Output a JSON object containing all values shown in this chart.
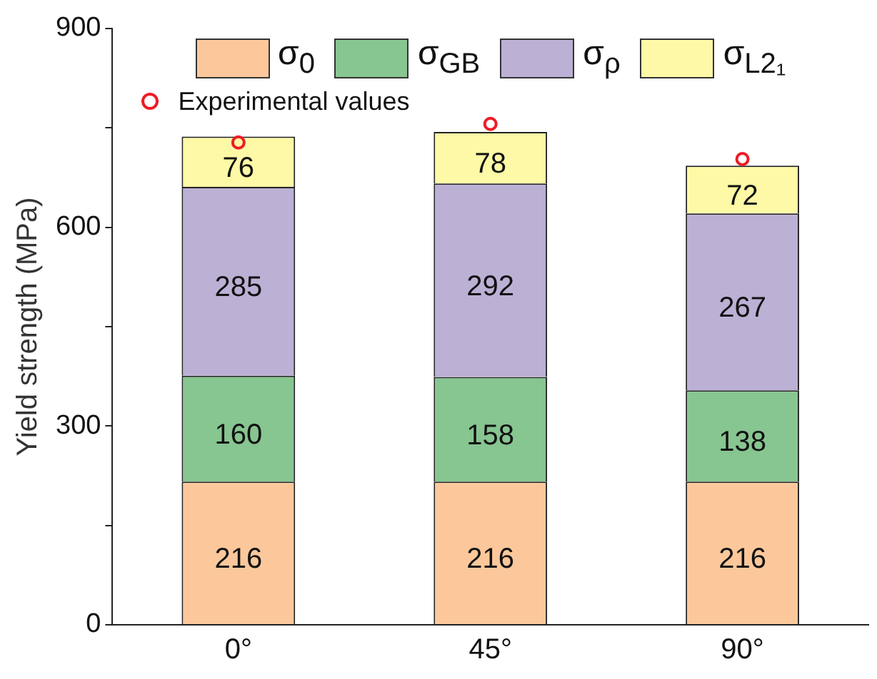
{
  "chart_data": {
    "type": "bar",
    "stacked": true,
    "ylabel": "Yield strength (MPa)",
    "categories": [
      "0°",
      "45°",
      "90°"
    ],
    "ylim": [
      0,
      900
    ],
    "yticks": [
      0,
      {
        "value": 150,
        "label": null
      },
      300,
      {
        "value": 450,
        "label": null
      },
      600,
      {
        "value": 750,
        "label": null
      },
      900
    ],
    "grid": false,
    "legend": "top",
    "series": [
      {
        "name": "σ$_{0}$",
        "color": "#fcc89b",
        "values": [
          216,
          216,
          216
        ],
        "value_labels": [
          "216",
          "216",
          "216"
        ]
      },
      {
        "name": "σ$_{GB}$",
        "color": "#87c591",
        "values": [
          160,
          158,
          138
        ],
        "value_labels": [
          "160",
          "158",
          "138"
        ]
      },
      {
        "name": "σ$_{ρ}$",
        "color": "#bcb0d5",
        "values": [
          285,
          292,
          267
        ],
        "value_labels": [
          "285",
          "292",
          "267"
        ]
      },
      {
        "name": "σ$_{L2₁}$",
        "color": "#fdf9a6",
        "values": [
          76,
          78,
          72
        ],
        "value_labels": [
          "76",
          "78",
          "72"
        ]
      },
      {
        "name": "Experimental values",
        "type": "scatter",
        "marker": "circle",
        "color": "#ee1c25",
        "values": [
          728,
          756,
          703
        ]
      }
    ]
  }
}
